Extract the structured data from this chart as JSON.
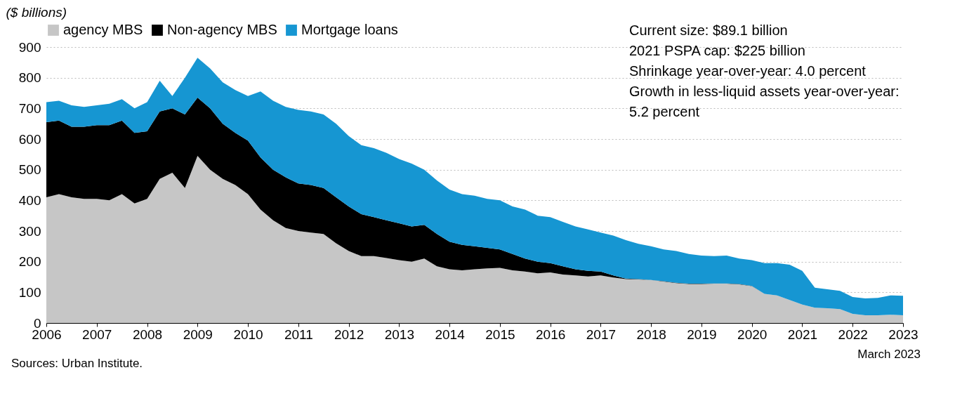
{
  "chart_data": {
    "type": "area",
    "stacked": true,
    "ylabel": "($ billions)",
    "x": [
      2006.0,
      2006.25,
      2006.5,
      2006.75,
      2007.0,
      2007.25,
      2007.5,
      2007.75,
      2008.0,
      2008.25,
      2008.5,
      2008.75,
      2009.0,
      2009.25,
      2009.5,
      2009.75,
      2010.0,
      2010.25,
      2010.5,
      2010.75,
      2011.0,
      2011.25,
      2011.5,
      2011.75,
      2012.0,
      2012.25,
      2012.5,
      2012.75,
      2013.0,
      2013.25,
      2013.5,
      2013.75,
      2014.0,
      2014.25,
      2014.5,
      2014.75,
      2015.0,
      2015.25,
      2015.5,
      2015.75,
      2016.0,
      2016.25,
      2016.5,
      2016.75,
      2017.0,
      2017.25,
      2017.5,
      2017.75,
      2018.0,
      2018.25,
      2018.5,
      2018.75,
      2019.0,
      2019.25,
      2019.5,
      2019.75,
      2020.0,
      2020.25,
      2020.5,
      2020.75,
      2021.0,
      2021.25,
      2021.5,
      2021.75,
      2022.0,
      2022.25,
      2022.5,
      2022.75,
      2023.0
    ],
    "series": [
      {
        "name": "agency MBS",
        "color": "#c6c6c6",
        "values": [
          410,
          420,
          410,
          405,
          405,
          400,
          420,
          390,
          405,
          470,
          490,
          440,
          545,
          500,
          470,
          450,
          420,
          370,
          335,
          310,
          300,
          295,
          290,
          260,
          235,
          218,
          218,
          212,
          205,
          200,
          210,
          185,
          175,
          172,
          175,
          178,
          180,
          172,
          168,
          162,
          165,
          158,
          155,
          152,
          155,
          148,
          143,
          142,
          140,
          135,
          130,
          127,
          127,
          128,
          128,
          126,
          120,
          95,
          90,
          75,
          60,
          50,
          48,
          45,
          30,
          25,
          25,
          27,
          25
        ]
      },
      {
        "name": "Non-agency MBS",
        "color": "#000000",
        "values": [
          245,
          240,
          230,
          235,
          240,
          245,
          240,
          230,
          220,
          220,
          210,
          240,
          190,
          200,
          180,
          170,
          175,
          170,
          165,
          165,
          155,
          155,
          150,
          150,
          145,
          137,
          127,
          123,
          120,
          115,
          110,
          105,
          90,
          83,
          75,
          67,
          60,
          53,
          42,
          38,
          30,
          27,
          20,
          18,
          13,
          7,
          2,
          1,
          0,
          1,
          1,
          1,
          1,
          1,
          1,
          1,
          1,
          0,
          0,
          0,
          0,
          0,
          0,
          0,
          0,
          0,
          0,
          0,
          0
        ]
      },
      {
        "name": "Mortgage loans",
        "color": "#1696d2",
        "values": [
          65,
          65,
          70,
          65,
          65,
          70,
          70,
          80,
          95,
          100,
          40,
          120,
          130,
          130,
          135,
          140,
          145,
          215,
          225,
          230,
          240,
          240,
          240,
          240,
          230,
          225,
          225,
          220,
          210,
          205,
          180,
          175,
          170,
          165,
          165,
          160,
          160,
          155,
          160,
          150,
          150,
          145,
          140,
          135,
          127,
          130,
          125,
          115,
          110,
          104,
          104,
          97,
          92,
          89,
          91,
          83,
          84,
          100,
          105,
          115,
          110,
          65,
          62,
          60,
          55,
          55,
          57,
          63,
          64
        ]
      }
    ],
    "xlim": [
      2006,
      2023
    ],
    "xticks": [
      2006,
      2007,
      2008,
      2009,
      2010,
      2011,
      2012,
      2013,
      2014,
      2015,
      2016,
      2017,
      2018,
      2019,
      2020,
      2021,
      2022,
      2023
    ],
    "ylim": [
      0,
      900
    ],
    "yticks": [
      0,
      100,
      200,
      300,
      400,
      500,
      600,
      700,
      800,
      900
    ],
    "grid": "y",
    "legend": "top",
    "annotations": [
      "Current size: $89.1 billion",
      "2021 PSPA cap: $225 billion",
      "Shrinkage year-over-year: 4.0 percent",
      "Growth in less-liquid assets year-over-year: 5.2 percent",
      "March 2023",
      "Sources: Urban Institute."
    ]
  }
}
